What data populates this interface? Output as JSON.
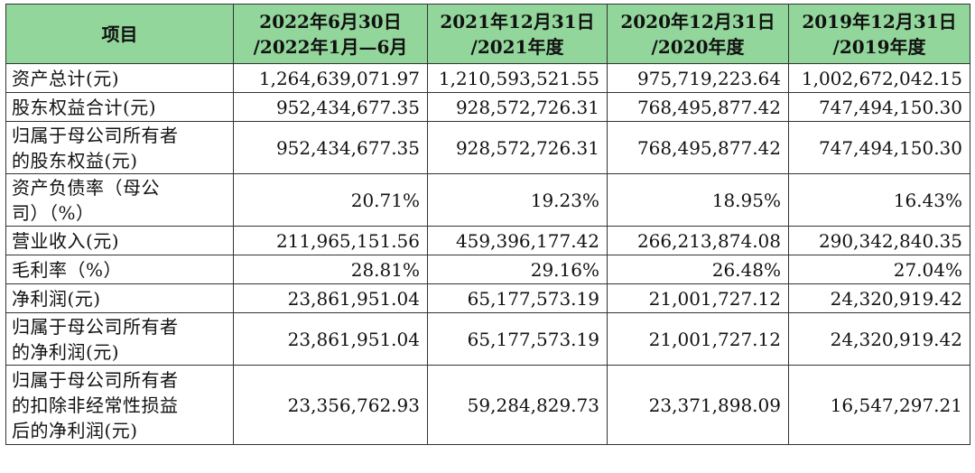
{
  "table": {
    "headers": [
      {
        "lines": [
          "项目"
        ]
      },
      {
        "lines": [
          "2022年6月30日",
          "/2022年1月—6月"
        ]
      },
      {
        "lines": [
          "2021年12月31日",
          "/2021年度"
        ]
      },
      {
        "lines": [
          "2020年12月31日",
          "/2020年度"
        ]
      },
      {
        "lines": [
          "2019年12月31日",
          "/2019年度"
        ]
      }
    ],
    "rows": [
      {
        "label": [
          "资产总计(元)"
        ],
        "values": [
          "1,264,639,071.97",
          "1,210,593,521.55",
          "975,719,223.64",
          "1,002,672,042.15"
        ]
      },
      {
        "label": [
          "股东权益合计(元)"
        ],
        "values": [
          "952,434,677.35",
          "928,572,726.31",
          "768,495,877.42",
          "747,494,150.30"
        ]
      },
      {
        "label": [
          "归属于母公司所有者",
          "的股东权益(元)"
        ],
        "values": [
          "952,434,677.35",
          "928,572,726.31",
          "768,495,877.42",
          "747,494,150.30"
        ]
      },
      {
        "label": [
          "资产负债率（母公",
          "司）（%）"
        ],
        "values": [
          "20.71%",
          "19.23%",
          "18.95%",
          "16.43%"
        ]
      },
      {
        "label": [
          "营业收入(元)"
        ],
        "values": [
          "211,965,151.56",
          "459,396,177.42",
          "266,213,874.08",
          "290,342,840.35"
        ]
      },
      {
        "label": [
          "毛利率（%）"
        ],
        "values": [
          "28.81%",
          "29.16%",
          "26.48%",
          "27.04%"
        ]
      },
      {
        "label": [
          "净利润(元)"
        ],
        "values": [
          "23,861,951.04",
          "65,177,573.19",
          "21,001,727.12",
          "24,320,919.42"
        ]
      },
      {
        "label": [
          "归属于母公司所有者",
          "的净利润(元)"
        ],
        "values": [
          "23,861,951.04",
          "65,177,573.19",
          "21,001,727.12",
          "24,320,919.42"
        ]
      },
      {
        "label": [
          "归属于母公司所有者",
          "的扣除非经常性损益",
          "后的净利润(元)"
        ],
        "values": [
          "23,356,762.93",
          "59,284,829.73",
          "23,371,898.09",
          "16,547,297.21"
        ]
      }
    ]
  }
}
